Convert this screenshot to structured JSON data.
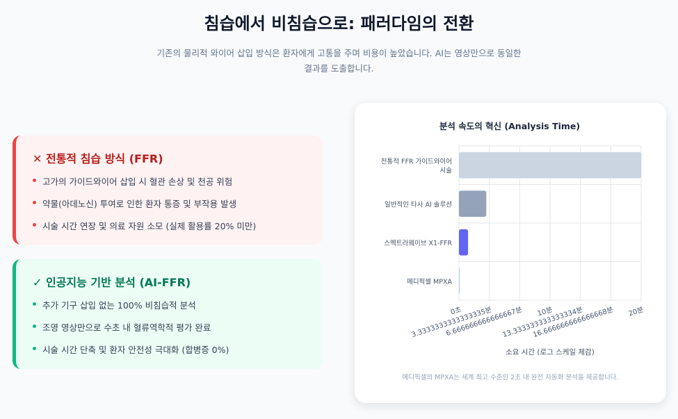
{
  "header": {
    "title": "침습에서 비침습으로: 패러다임의 전환",
    "subtitle_lines": [
      "기존의 물리적 와이어 삽입 방식은 환자에게 고통을 주며 비용이 높았습니다. AI는 영상만으로 동일한",
      "결과를 도출합니다."
    ]
  },
  "cards": [
    {
      "heading": "✕ 전통적 침습 방식 (FFR)",
      "items": [
        "고가의 가이드와이어 삽입 시 혈관 손상 및 천공 위험",
        "약물(아데노신) 투여로 인한 환자 통증 및 부작용 발생",
        "시술 시간 연장 및 의료 자원 소모 (실제 활용률 20% 미만)"
      ]
    },
    {
      "heading": "✓ 인공지능 기반 분석 (AI-FFR)",
      "items": [
        "추가 기구 삽입 없는 100% 비침습적 분석",
        "조영 영상만으로 수초 내 혈류역학적 평가 완료",
        "시술 시간 단축 및 환자 안전성 극대화 (합병증 0%)"
      ]
    }
  ],
  "chart_data": {
    "type": "hbar",
    "title": "분석 속도의 혁신 (Analysis Time)",
    "categories": [
      [
        "전통적 FFR 가이드와이어",
        "시술"
      ],
      [
        "일반적인 타사 AI 솔루션"
      ],
      [
        "스펙트라웨이브 X1-FFR"
      ],
      [
        "메디픽셀 MPXA"
      ]
    ],
    "values": [
      20,
      3,
      1,
      0.033
    ],
    "colors": [
      "#cbd5e1",
      "#94a3b8",
      "#6366f1",
      "#3b82f6"
    ],
    "xlim": [
      0,
      20
    ],
    "xticks": [
      {
        "value": 0,
        "label": "0초"
      },
      {
        "value": 3.3333333333333335,
        "label": "3.3333333333333335분"
      },
      {
        "value": 6.666666666666667,
        "label": "6.666666666666667분"
      },
      {
        "value": 10,
        "label": "10분"
      },
      {
        "value": 13.333333333333334,
        "label": "13.333333333333334분"
      },
      {
        "value": 16.666666666666668,
        "label": "16.666666666666668분"
      },
      {
        "value": 20,
        "label": "20분"
      }
    ],
    "xlabel": "소요 시간 (로그 스케일 체감)",
    "grid": true
  },
  "chart_note": "메디픽셀의 MPXA는 세계 최고 수준인 2초 내 완전 자동화 분석을 제공합니다."
}
